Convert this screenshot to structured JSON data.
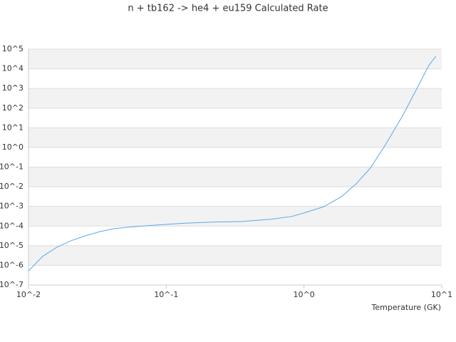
{
  "chart_data": {
    "type": "line",
    "title": "n + tb162 -> he4 + eu159 Calculated Rate",
    "x_label": "Temperature (GK)",
    "x": [
      0.01,
      0.0127,
      0.0161,
      0.0204,
      0.0259,
      0.0329,
      0.0418,
      0.053,
      0.0676,
      0.0965,
      0.138,
      0.221,
      0.355,
      0.574,
      0.82,
      1.036,
      1.4,
      1.88,
      2.39,
      3.03,
      3.85,
      5.18,
      6.57,
      8.05,
      9.07
    ],
    "series": [
      {
        "color": "#5ba8e8",
        "values": [
          5.2e-07,
          2.9e-06,
          8.5e-06,
          1.8e-05,
          3.2e-05,
          5.2e-05,
          7.4e-05,
          8.7e-05,
          0.0001,
          0.00012,
          0.00014,
          0.00016,
          0.00017,
          0.00022,
          0.00031,
          0.0005,
          0.00098,
          0.0032,
          0.014,
          0.089,
          1.17,
          39,
          930,
          14800,
          43600
        ]
      }
    ],
    "xscale": "log",
    "yscale": "log",
    "xlim": [
      0.01,
      10
    ],
    "xticks": [
      {
        "value": 0.01,
        "label": "10^-2"
      },
      {
        "value": 0.1,
        "label": "10^-1"
      },
      {
        "value": 1,
        "label": "10^0"
      },
      {
        "value": 10,
        "label": "10^1"
      }
    ],
    "ylim": [
      1e-07,
      100000
    ],
    "yticks": [
      {
        "value": 1e-07,
        "label": "10^-7"
      },
      {
        "value": 1e-06,
        "label": "10^-6"
      },
      {
        "value": 1e-05,
        "label": "10^-5"
      },
      {
        "value": 0.0001,
        "label": "10^-4"
      },
      {
        "value": 0.001,
        "label": "10^-3"
      },
      {
        "value": 0.01,
        "label": "10^-2"
      },
      {
        "value": 0.1,
        "label": "10^-1"
      },
      {
        "value": 1,
        "label": "10^0"
      },
      {
        "value": 10,
        "label": "10^1"
      },
      {
        "value": 100,
        "label": "10^2"
      },
      {
        "value": 1000,
        "label": "10^3"
      },
      {
        "value": 10000,
        "label": "10^4"
      },
      {
        "value": 100000,
        "label": "10^5"
      }
    ],
    "grid": true,
    "band_color": "#f2f2f2"
  }
}
